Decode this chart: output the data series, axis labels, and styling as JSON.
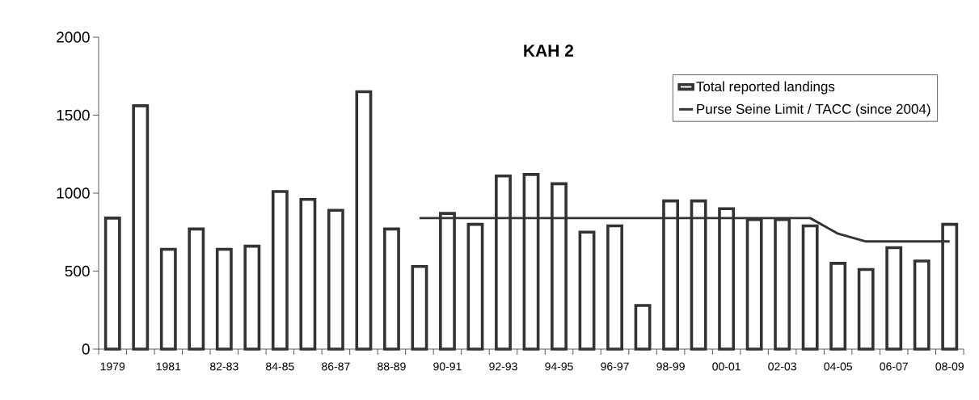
{
  "chart_data": {
    "type": "bar",
    "title": "KAH 2",
    "categories": [
      "1979",
      null,
      "1981",
      null,
      "82-83",
      null,
      "84-85",
      null,
      "86-87",
      null,
      "88-89",
      null,
      "90-91",
      null,
      "92-93",
      null,
      "94-95",
      null,
      "96-97",
      null,
      "98-99",
      null,
      "00-01",
      null,
      "02-03",
      null,
      "04-05",
      null,
      "06-07",
      null,
      "08-09"
    ],
    "series": [
      {
        "name": "Total reported landings",
        "color": "#333333",
        "values": [
          840,
          1560,
          640,
          770,
          640,
          660,
          1010,
          960,
          890,
          1650,
          770,
          530,
          870,
          800,
          1110,
          1120,
          1060,
          750,
          790,
          280,
          950,
          950,
          900,
          830,
          830,
          790,
          550,
          510,
          650,
          565,
          800
        ]
      },
      {
        "name": "Purse Seine Limit / TACC (since 2004)",
        "type": "line",
        "color": "#333333",
        "values": [
          null,
          null,
          null,
          null,
          null,
          null,
          null,
          null,
          null,
          null,
          null,
          840,
          840,
          840,
          840,
          840,
          840,
          840,
          840,
          840,
          840,
          840,
          840,
          840,
          840,
          840,
          740,
          690,
          690,
          690,
          690
        ]
      }
    ],
    "ylim": [
      0,
      2000
    ],
    "yticks": [
      0,
      500,
      1000,
      1500,
      2000
    ],
    "legend": "top right"
  }
}
